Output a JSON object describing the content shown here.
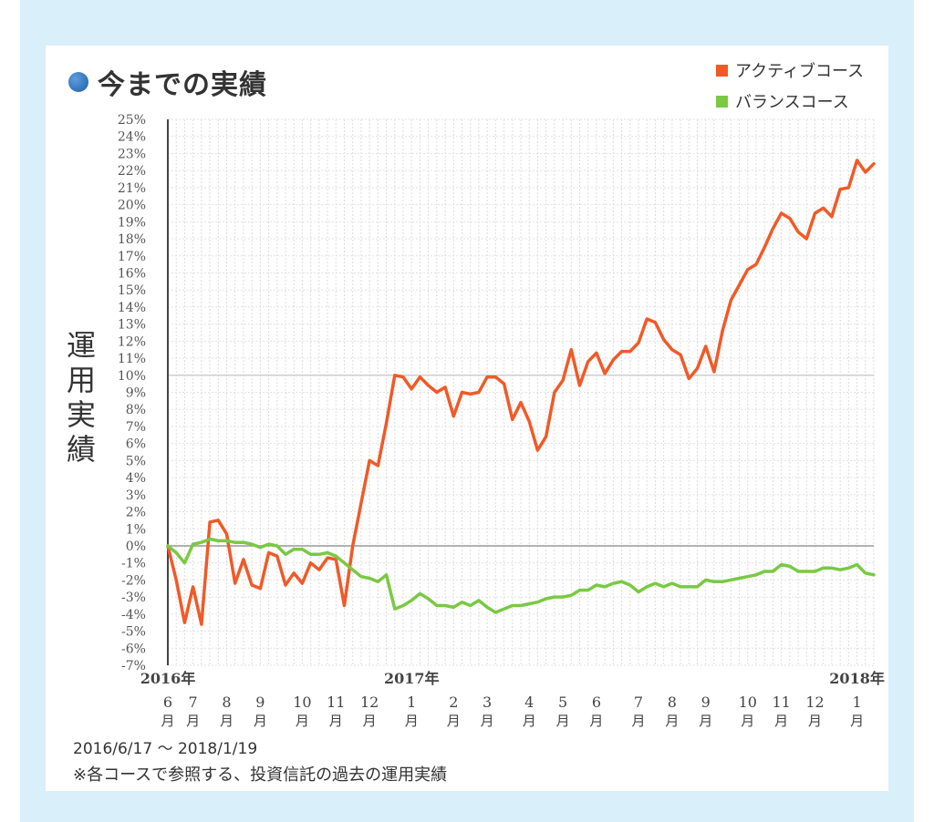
{
  "title": "今までの実績",
  "ylabel_chars": [
    "運",
    "用",
    "実",
    "績"
  ],
  "footer": {
    "range": "2016/6/17 ～ 2018/1/19",
    "note": "※各コースで参照する、投資信託の過去の運用実績"
  },
  "colors": {
    "active": "#f05a28",
    "balance": "#7ac943",
    "background": "#d9effa",
    "zero_line": "#999999"
  },
  "chart_data": {
    "type": "line",
    "title": "今までの実績",
    "ylabel": "運用実績",
    "xlabel": "",
    "ylim": [
      -7,
      25
    ],
    "yticks": [
      25,
      24,
      23,
      22,
      21,
      20,
      19,
      18,
      17,
      16,
      15,
      14,
      13,
      12,
      11,
      10,
      9,
      8,
      7,
      6,
      5,
      4,
      3,
      2,
      1,
      0,
      -1,
      -2,
      -3,
      -4,
      -5,
      -6,
      -7
    ],
    "ytick_labels": [
      "25%",
      "24%",
      "23%",
      "22%",
      "21%",
      "20%",
      "19%",
      "18%",
      "17%",
      "16%",
      "15%",
      "14%",
      "13%",
      "12%",
      "11%",
      "10%",
      "9%",
      "8%",
      "7%",
      "6%",
      "5%",
      "4%",
      "3%",
      "2%",
      "1%",
      "0%",
      "-1%",
      "-2%",
      "-3%",
      "-4%",
      "-5%",
      "-6%",
      "-7%"
    ],
    "grid": true,
    "legend_position": "top-right",
    "x_range": [
      0,
      84
    ],
    "year_labels": [
      {
        "label": "2016年",
        "x": 0
      },
      {
        "label": "2017年",
        "x": 29
      },
      {
        "label": "2018年",
        "x": 82
      }
    ],
    "month_labels": [
      {
        "month": "6",
        "unit": "月",
        "x": 0
      },
      {
        "month": "7",
        "unit": "月",
        "x": 3
      },
      {
        "month": "8",
        "unit": "月",
        "x": 7
      },
      {
        "month": "9",
        "unit": "月",
        "x": 11
      },
      {
        "month": "10",
        "unit": "月",
        "x": 16
      },
      {
        "month": "11",
        "unit": "月",
        "x": 20
      },
      {
        "month": "12",
        "unit": "月",
        "x": 24
      },
      {
        "month": "1",
        "unit": "月",
        "x": 29
      },
      {
        "month": "2",
        "unit": "月",
        "x": 34
      },
      {
        "month": "3",
        "unit": "月",
        "x": 38
      },
      {
        "month": "4",
        "unit": "月",
        "x": 43
      },
      {
        "month": "5",
        "unit": "月",
        "x": 47
      },
      {
        "month": "6",
        "unit": "月",
        "x": 51
      },
      {
        "month": "7",
        "unit": "月",
        "x": 56
      },
      {
        "month": "8",
        "unit": "月",
        "x": 60
      },
      {
        "month": "9",
        "unit": "月",
        "x": 64
      },
      {
        "month": "10",
        "unit": "月",
        "x": 69
      },
      {
        "month": "11",
        "unit": "月",
        "x": 73
      },
      {
        "month": "12",
        "unit": "月",
        "x": 77
      },
      {
        "month": "1",
        "unit": "月",
        "x": 82
      }
    ],
    "series": [
      {
        "name": "アクティブコース",
        "color": "#f05a28",
        "points": [
          [
            0,
            0
          ],
          [
            1,
            -2
          ],
          [
            2,
            -4.5
          ],
          [
            3,
            -2.4
          ],
          [
            4,
            -4.6
          ],
          [
            5,
            1.4
          ],
          [
            6,
            1.5
          ],
          [
            7,
            0.7
          ],
          [
            8,
            -2.2
          ],
          [
            9,
            -0.8
          ],
          [
            10,
            -2.3
          ],
          [
            11,
            -2.5
          ],
          [
            12,
            -0.4
          ],
          [
            13,
            -0.6
          ],
          [
            14,
            -2.3
          ],
          [
            15,
            -1.6
          ],
          [
            16,
            -2.2
          ],
          [
            17,
            -1.0
          ],
          [
            18,
            -1.4
          ],
          [
            19,
            -0.7
          ],
          [
            20,
            -0.8
          ],
          [
            21,
            -3.5
          ],
          [
            22,
            0.0
          ],
          [
            23,
            2.5
          ],
          [
            24,
            5.0
          ],
          [
            25,
            4.7
          ],
          [
            26,
            7.2
          ],
          [
            27,
            10.0
          ],
          [
            28,
            9.9
          ],
          [
            29,
            9.2
          ],
          [
            30,
            9.9
          ],
          [
            31,
            9.4
          ],
          [
            32,
            9.0
          ],
          [
            33,
            9.3
          ],
          [
            34,
            7.6
          ],
          [
            35,
            9.0
          ],
          [
            36,
            8.9
          ],
          [
            37,
            9.0
          ],
          [
            38,
            9.9
          ],
          [
            39,
            9.9
          ],
          [
            40,
            9.5
          ],
          [
            41,
            7.4
          ],
          [
            42,
            8.4
          ],
          [
            43,
            7.3
          ],
          [
            44,
            5.6
          ],
          [
            45,
            6.4
          ],
          [
            46,
            9.0
          ],
          [
            47,
            9.7
          ],
          [
            48,
            11.5
          ],
          [
            49,
            9.4
          ],
          [
            50,
            10.8
          ],
          [
            51,
            11.3
          ],
          [
            52,
            10.1
          ],
          [
            53,
            10.9
          ],
          [
            54,
            11.4
          ],
          [
            55,
            11.4
          ],
          [
            56,
            11.9
          ],
          [
            57,
            13.3
          ],
          [
            58,
            13.1
          ],
          [
            59,
            12.1
          ],
          [
            60,
            11.5
          ],
          [
            61,
            11.2
          ],
          [
            62,
            9.8
          ],
          [
            63,
            10.4
          ],
          [
            64,
            11.7
          ],
          [
            65,
            10.2
          ],
          [
            66,
            12.6
          ],
          [
            67,
            14.4
          ],
          [
            68,
            15.3
          ],
          [
            69,
            16.2
          ],
          [
            70,
            16.5
          ],
          [
            71,
            17.5
          ],
          [
            72,
            18.6
          ],
          [
            73,
            19.5
          ],
          [
            74,
            19.2
          ],
          [
            75,
            18.4
          ],
          [
            76,
            18.0
          ],
          [
            77,
            19.5
          ],
          [
            78,
            19.8
          ],
          [
            79,
            19.3
          ],
          [
            80,
            20.9
          ],
          [
            81,
            21.0
          ],
          [
            82,
            22.6
          ],
          [
            83,
            21.9
          ],
          [
            84,
            22.4
          ]
        ]
      },
      {
        "name": "バランスコース",
        "color": "#7ac943",
        "points": [
          [
            0,
            0
          ],
          [
            1,
            -0.4
          ],
          [
            2,
            -1.0
          ],
          [
            3,
            0.1
          ],
          [
            4,
            0.2
          ],
          [
            5,
            0.4
          ],
          [
            6,
            0.3
          ],
          [
            7,
            0.3
          ],
          [
            8,
            0.2
          ],
          [
            9,
            0.2
          ],
          [
            10,
            0.1
          ],
          [
            11,
            -0.1
          ],
          [
            12,
            0.1
          ],
          [
            13,
            0.0
          ],
          [
            14,
            -0.5
          ],
          [
            15,
            -0.2
          ],
          [
            16,
            -0.2
          ],
          [
            17,
            -0.5
          ],
          [
            18,
            -0.5
          ],
          [
            19,
            -0.4
          ],
          [
            20,
            -0.6
          ],
          [
            21,
            -1.0
          ],
          [
            22,
            -1.4
          ],
          [
            23,
            -1.8
          ],
          [
            24,
            -1.9
          ],
          [
            25,
            -2.1
          ],
          [
            26,
            -1.7
          ],
          [
            27,
            -3.7
          ],
          [
            28,
            -3.5
          ],
          [
            29,
            -3.2
          ],
          [
            30,
            -2.8
          ],
          [
            31,
            -3.1
          ],
          [
            32,
            -3.5
          ],
          [
            33,
            -3.5
          ],
          [
            34,
            -3.6
          ],
          [
            35,
            -3.3
          ],
          [
            36,
            -3.5
          ],
          [
            37,
            -3.2
          ],
          [
            38,
            -3.6
          ],
          [
            39,
            -3.9
          ],
          [
            40,
            -3.7
          ],
          [
            41,
            -3.5
          ],
          [
            42,
            -3.5
          ],
          [
            43,
            -3.4
          ],
          [
            44,
            -3.3
          ],
          [
            45,
            -3.1
          ],
          [
            46,
            -3.0
          ],
          [
            47,
            -3.0
          ],
          [
            48,
            -2.9
          ],
          [
            49,
            -2.6
          ],
          [
            50,
            -2.6
          ],
          [
            51,
            -2.3
          ],
          [
            52,
            -2.4
          ],
          [
            53,
            -2.2
          ],
          [
            54,
            -2.1
          ],
          [
            55,
            -2.3
          ],
          [
            56,
            -2.7
          ],
          [
            57,
            -2.4
          ],
          [
            58,
            -2.2
          ],
          [
            59,
            -2.4
          ],
          [
            60,
            -2.2
          ],
          [
            61,
            -2.4
          ],
          [
            62,
            -2.4
          ],
          [
            63,
            -2.4
          ],
          [
            64,
            -2.0
          ],
          [
            65,
            -2.1
          ],
          [
            66,
            -2.1
          ],
          [
            67,
            -2.0
          ],
          [
            68,
            -1.9
          ],
          [
            69,
            -1.8
          ],
          [
            70,
            -1.7
          ],
          [
            71,
            -1.5
          ],
          [
            72,
            -1.5
          ],
          [
            73,
            -1.1
          ],
          [
            74,
            -1.2
          ],
          [
            75,
            -1.5
          ],
          [
            76,
            -1.5
          ],
          [
            77,
            -1.5
          ],
          [
            78,
            -1.3
          ],
          [
            79,
            -1.3
          ],
          [
            80,
            -1.4
          ],
          [
            81,
            -1.3
          ],
          [
            82,
            -1.1
          ],
          [
            83,
            -1.6
          ],
          [
            84,
            -1.7
          ]
        ]
      }
    ]
  }
}
